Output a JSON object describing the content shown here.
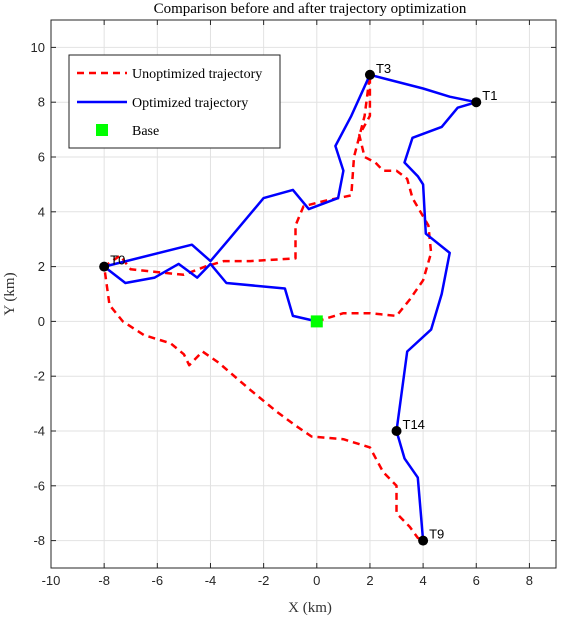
{
  "chart_data": {
    "type": "line",
    "title": "Comparison before and after trajectory optimization",
    "xlabel": "X (km)",
    "ylabel": "Y (km)",
    "xlim": [
      -10,
      9
    ],
    "ylim": [
      -9,
      11
    ],
    "xticks": [
      -10,
      -8,
      -6,
      -4,
      -2,
      0,
      2,
      4,
      6,
      8
    ],
    "yticks": [
      -8,
      -6,
      -4,
      -2,
      0,
      2,
      4,
      6,
      8,
      10
    ],
    "grid": true,
    "legend_position": "top-left",
    "series": [
      {
        "name": "Unoptimized trajectory",
        "color": "#ff0000",
        "style": "dashed",
        "points": [
          [
            0,
            0
          ],
          [
            1,
            0.3
          ],
          [
            2,
            0.3
          ],
          [
            3,
            0.2
          ],
          [
            3.5,
            0.8
          ],
          [
            4,
            1.5
          ],
          [
            4.3,
            2.5
          ],
          [
            4.2,
            3.5
          ],
          [
            3.6,
            4.5
          ],
          [
            3.4,
            5.2
          ],
          [
            3.0,
            5.5
          ],
          [
            2.5,
            5.5
          ],
          [
            2.2,
            5.8
          ],
          [
            1.8,
            6.0
          ],
          [
            1.6,
            6.8
          ],
          [
            2.0,
            7.5
          ],
          [
            2.0,
            9.0
          ],
          [
            1.8,
            7.5
          ],
          [
            1.4,
            6.0
          ],
          [
            1.3,
            4.6
          ],
          [
            0.8,
            4.5
          ],
          [
            0.3,
            4.4
          ],
          [
            -0.5,
            4.2
          ],
          [
            -0.8,
            3.5
          ],
          [
            -0.8,
            2.3
          ],
          [
            -2.5,
            2.2
          ],
          [
            -3.5,
            2.2
          ],
          [
            -4.2,
            2.0
          ],
          [
            -5.0,
            1.7
          ],
          [
            -6,
            1.8
          ],
          [
            -7.0,
            1.9
          ],
          [
            -7.4,
            2.4
          ],
          [
            -8,
            2.0
          ],
          [
            -7.8,
            0.6
          ],
          [
            -7.3,
            0
          ],
          [
            -6.5,
            -0.5
          ],
          [
            -5.5,
            -0.8
          ],
          [
            -5.0,
            -1.2
          ],
          [
            -4.8,
            -1.6
          ],
          [
            -4.3,
            -1.1
          ],
          [
            -3.7,
            -1.5
          ],
          [
            -2.5,
            -2.5
          ],
          [
            -1.5,
            -3.3
          ],
          [
            -0.8,
            -3.8
          ],
          [
            -0.2,
            -4.2
          ],
          [
            1.0,
            -4.3
          ],
          [
            2.0,
            -4.6
          ],
          [
            2.5,
            -5.5
          ],
          [
            3.0,
            -6.0
          ],
          [
            3.0,
            -7.0
          ],
          [
            3.5,
            -7.5
          ],
          [
            3.8,
            -7.9
          ],
          [
            4.0,
            -8.0
          ]
        ]
      },
      {
        "name": "Optimized trajectory",
        "color": "#0000ff",
        "style": "solid",
        "points": [
          [
            0,
            0
          ],
          [
            -0.9,
            0.2
          ],
          [
            -1.2,
            1.2
          ],
          [
            -3.4,
            1.4
          ],
          [
            -4.0,
            2.1
          ],
          [
            -4.5,
            1.6
          ],
          [
            -5.2,
            2.1
          ],
          [
            -6.1,
            1.6
          ],
          [
            -7.2,
            1.4
          ],
          [
            -8,
            2.0
          ],
          [
            -4.7,
            2.8
          ],
          [
            -4.0,
            2.2
          ],
          [
            -3.3,
            3.0
          ],
          [
            -2.0,
            4.5
          ],
          [
            -0.9,
            4.8
          ],
          [
            -0.3,
            4.1
          ],
          [
            0.8,
            4.5
          ],
          [
            1.0,
            5.5
          ],
          [
            0.7,
            6.4
          ],
          [
            1.3,
            7.5
          ],
          [
            2.0,
            9.0
          ],
          [
            4.0,
            8.5
          ],
          [
            5.0,
            8.2
          ],
          [
            6.0,
            8.0
          ],
          [
            5.3,
            7.8
          ],
          [
            4.7,
            7.1
          ],
          [
            3.6,
            6.7
          ],
          [
            3.3,
            5.8
          ],
          [
            3.8,
            5.3
          ],
          [
            4.0,
            5.0
          ],
          [
            4.1,
            3.2
          ],
          [
            5.0,
            2.5
          ],
          [
            4.7,
            1.0
          ],
          [
            4.3,
            -0.3
          ],
          [
            3.4,
            -1.1
          ],
          [
            3.0,
            -4.0
          ],
          [
            3.3,
            -5.0
          ],
          [
            3.8,
            -5.7
          ],
          [
            4.0,
            -8.0
          ]
        ]
      }
    ],
    "markers": [
      {
        "label": "T0",
        "x": -8,
        "y": 2
      },
      {
        "label": "T3",
        "x": 2,
        "y": 9
      },
      {
        "label": "T1",
        "x": 6,
        "y": 8
      },
      {
        "label": "T14",
        "x": 3,
        "y": -4
      },
      {
        "label": "T9",
        "x": 4,
        "y": -8
      }
    ],
    "base": {
      "label": "Base",
      "x": 0,
      "y": 0,
      "color": "#00ff00"
    },
    "marker_color": "#000000"
  }
}
